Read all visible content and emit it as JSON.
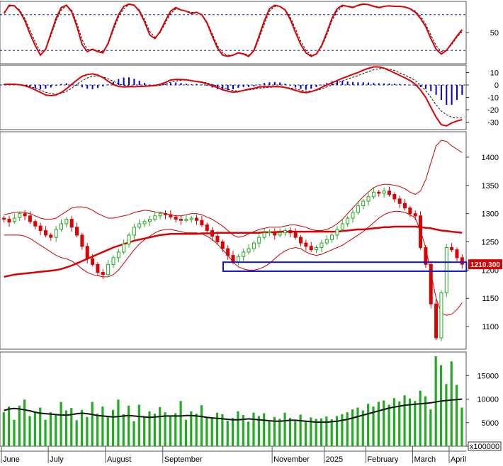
{
  "chart_data": [
    {
      "type": "line",
      "panel": "oscillator",
      "y_ticks": [
        50
      ],
      "ylim": [
        0,
        100
      ],
      "reference_lines": [
        80,
        20
      ],
      "series": [
        {
          "color": "#e00000",
          "values": [
            82,
            96,
            95,
            86,
            70,
            48,
            28,
            12,
            22,
            48,
            74,
            92,
            96,
            85,
            60,
            30,
            18,
            22,
            18,
            16,
            32,
            58,
            80,
            94,
            98,
            96,
            86,
            68,
            46,
            40,
            52,
            70,
            86,
            92,
            88,
            86,
            82,
            84,
            80,
            66,
            44,
            24,
            12,
            10,
            12,
            16,
            14,
            10,
            20,
            44,
            70,
            90,
            96,
            94,
            88,
            72,
            50,
            30,
            16,
            10,
            14,
            28,
            50,
            74,
            90,
            96,
            94,
            92,
            96,
            98,
            97,
            94,
            92,
            94,
            95,
            94,
            94,
            93,
            90,
            84,
            74,
            60,
            40,
            22,
            14,
            20,
            32,
            44,
            55
          ]
        },
        {
          "color": "#111111",
          "values": [
            84,
            94,
            95,
            88,
            74,
            54,
            34,
            18,
            22,
            44,
            70,
            88,
            95,
            88,
            66,
            38,
            22,
            22,
            20,
            18,
            30,
            54,
            76,
            90,
            97,
            96,
            88,
            72,
            52,
            42,
            50,
            66,
            82,
            90,
            88,
            86,
            84,
            84,
            80,
            68,
            48,
            28,
            16,
            12,
            12,
            16,
            15,
            12,
            18,
            40,
            64,
            86,
            94,
            94,
            89,
            76,
            56,
            36,
            20,
            12,
            14,
            26,
            46,
            70,
            86,
            94,
            95,
            93,
            95,
            97,
            97,
            95,
            93,
            94,
            95,
            94,
            94,
            93,
            91,
            86,
            78,
            64,
            46,
            28,
            18,
            20,
            30,
            42,
            52
          ]
        }
      ]
    },
    {
      "type": "bar",
      "panel": "macd",
      "y_ticks": [
        10,
        0,
        -10,
        -20,
        -30
      ],
      "ylim": [
        -36,
        16
      ],
      "histogram_color": "#0000dd",
      "histogram": [
        0.6,
        1,
        1.2,
        0.6,
        -0.2,
        -1.2,
        -2.6,
        -3.4,
        -3,
        -2,
        -0.6,
        0.8,
        1.4,
        1,
        -0.2,
        -1.8,
        -3,
        -3.4,
        -2.4,
        -1.2,
        0.4,
        2.4,
        4.8,
        6,
        6.2,
        5,
        3.4,
        1.6,
        0.2,
        -0.6,
        -0.2,
        0.8,
        1.6,
        2,
        1.6,
        1,
        0.6,
        0.8,
        0.4,
        -0.6,
        -2,
        -3.4,
        -4.4,
        -4.2,
        -3.4,
        -2.4,
        -1.6,
        -1.6,
        -1.2,
        0.4,
        1.6,
        2.2,
        2.4,
        2,
        1,
        -0.4,
        -2,
        -3.2,
        -3.8,
        -3,
        -1.6,
        0.2,
        1.6,
        2.8,
        3.6,
        3.4,
        2.8,
        2.4,
        2.2,
        2.2,
        2,
        1.6,
        1.4,
        1.2,
        1.2,
        1,
        0.8,
        0.6,
        0.2,
        -0.6,
        -1.6,
        -3.2,
        -5,
        -8,
        -12,
        -16,
        -16,
        -12,
        -8
      ],
      "series": [
        {
          "color": "#e00000",
          "values": [
            0.5,
            0.6,
            0.5,
            0.2,
            -0.6,
            -2,
            -4,
            -6,
            -8,
            -8.6,
            -8,
            -6,
            -3,
            0.5,
            4,
            7,
            8.4,
            9,
            8,
            6,
            3,
            0.4,
            -1.2,
            -1.6,
            -1.4,
            -1.4,
            -1.2,
            -1,
            -0.8,
            -0.4,
            0.6,
            2,
            4,
            4.5,
            4.4,
            4.2,
            3.4,
            2.8,
            2.2,
            0.8,
            -0.6,
            -2,
            -3.8,
            -5,
            -5.8,
            -5.4,
            -4.4,
            -3.4,
            -2.6,
            -1.6,
            -1.4,
            -1.4,
            -1.2,
            -1.4,
            -2,
            -3,
            -4.4,
            -5.6,
            -6.2,
            -5.4,
            -4,
            -2,
            0,
            1.8,
            3.6,
            5.4,
            7,
            8.6,
            10,
            12,
            13.4,
            14.6,
            14.6,
            13.6,
            11.8,
            9.8,
            7.8,
            5.8,
            3.6,
            0.6,
            -4,
            -10,
            -18,
            -26,
            -32,
            -33,
            -30.6,
            -29,
            -28
          ]
        },
        {
          "color": "#111111",
          "dashed": true,
          "values": [
            0.5,
            0.6,
            0.6,
            0.4,
            -0.2,
            -1.2,
            -2.6,
            -4.2,
            -5.8,
            -7,
            -7.4,
            -6.8,
            -5,
            -2.6,
            0.6,
            3.4,
            5.6,
            7.2,
            7.4,
            6.6,
            5,
            3,
            1,
            -0.2,
            -0.8,
            -1.1,
            -1.2,
            -1.1,
            -1,
            -0.8,
            -0.2,
            0.8,
            2.2,
            3.2,
            3.8,
            4,
            3.6,
            3.1,
            2.6,
            1.6,
            0.4,
            -0.8,
            -2.2,
            -3.4,
            -4.4,
            -4.8,
            -4.6,
            -4,
            -3.4,
            -2.6,
            -2.2,
            -1.9,
            -1.6,
            -1.6,
            -1.8,
            -2.4,
            -3.2,
            -4.2,
            -5,
            -5,
            -4.4,
            -3.2,
            -1.6,
            0,
            1.6,
            3.2,
            4.8,
            6.2,
            7.6,
            9.2,
            10.8,
            12.2,
            13.2,
            13.4,
            12.8,
            11.6,
            9.8,
            8,
            6,
            3.6,
            0,
            -4.6,
            -10,
            -16,
            -21,
            -24,
            -26,
            -26.4,
            -26.6
          ]
        }
      ]
    },
    {
      "type": "candlestick",
      "panel": "price",
      "y_ticks": [
        1400,
        1350,
        1300,
        1250,
        1200,
        1150,
        1100
      ],
      "ylim": [
        1060,
        1445
      ],
      "up_color": "#22aa22",
      "down_color": "#dd0000",
      "close": [
        1290,
        1285,
        1292,
        1300,
        1296,
        1286,
        1278,
        1270,
        1262,
        1258,
        1272,
        1282,
        1290,
        1276,
        1262,
        1242,
        1220,
        1210,
        1196,
        1192,
        1210,
        1222,
        1232,
        1246,
        1262,
        1276,
        1282,
        1286,
        1290,
        1296,
        1300,
        1298,
        1294,
        1290,
        1288,
        1290,
        1292,
        1288,
        1280,
        1270,
        1260,
        1250,
        1238,
        1226,
        1214,
        1224,
        1232,
        1238,
        1248,
        1258,
        1266,
        1268,
        1262,
        1266,
        1270,
        1266,
        1258,
        1248,
        1242,
        1236,
        1240,
        1248,
        1254,
        1262,
        1272,
        1282,
        1292,
        1302,
        1314,
        1322,
        1330,
        1338,
        1336,
        1340,
        1334,
        1326,
        1318,
        1310,
        1300,
        1296,
        1240,
        1210,
        1140,
        1080,
        1160,
        1240,
        1236,
        1222,
        1210.3
      ],
      "open": [
        1292,
        1290,
        1286,
        1293,
        1300,
        1296,
        1286,
        1278,
        1270,
        1262,
        1258,
        1272,
        1282,
        1290,
        1276,
        1262,
        1242,
        1220,
        1210,
        1196,
        1192,
        1210,
        1222,
        1232,
        1246,
        1262,
        1276,
        1282,
        1286,
        1290,
        1296,
        1300,
        1298,
        1294,
        1290,
        1288,
        1290,
        1292,
        1288,
        1280,
        1270,
        1260,
        1250,
        1238,
        1226,
        1214,
        1224,
        1232,
        1238,
        1248,
        1258,
        1266,
        1268,
        1262,
        1266,
        1270,
        1266,
        1258,
        1248,
        1242,
        1236,
        1240,
        1248,
        1254,
        1262,
        1272,
        1282,
        1292,
        1302,
        1314,
        1322,
        1330,
        1338,
        1336,
        1340,
        1334,
        1326,
        1318,
        1310,
        1300,
        1296,
        1240,
        1210,
        1140,
        1080,
        1160,
        1240,
        1236,
        1222
      ],
      "bollinger_upper": [
        1298,
        1300,
        1302,
        1303,
        1302,
        1300,
        1296,
        1292,
        1290,
        1290,
        1292,
        1298,
        1304,
        1310,
        1312,
        1312,
        1310,
        1306,
        1300,
        1296,
        1292,
        1292,
        1294,
        1296,
        1298,
        1302,
        1304,
        1306,
        1305,
        1303,
        1302,
        1300,
        1298,
        1296,
        1296,
        1298,
        1300,
        1300,
        1298,
        1294,
        1290,
        1284,
        1278,
        1270,
        1262,
        1258,
        1260,
        1264,
        1268,
        1272,
        1274,
        1276,
        1276,
        1276,
        1278,
        1280,
        1280,
        1278,
        1276,
        1272,
        1270,
        1270,
        1272,
        1276,
        1282,
        1290,
        1300,
        1310,
        1320,
        1330,
        1338,
        1346,
        1350,
        1352,
        1352,
        1350,
        1348,
        1344,
        1338,
        1334,
        1340,
        1360,
        1390,
        1420,
        1430,
        1428,
        1420,
        1414,
        1408
      ],
      "bollinger_lower": [
        1262,
        1262,
        1262,
        1262,
        1260,
        1256,
        1250,
        1244,
        1238,
        1232,
        1226,
        1222,
        1220,
        1216,
        1210,
        1202,
        1196,
        1192,
        1190,
        1188,
        1188,
        1192,
        1200,
        1212,
        1224,
        1236,
        1246,
        1254,
        1260,
        1266,
        1270,
        1272,
        1272,
        1270,
        1268,
        1266,
        1266,
        1266,
        1264,
        1260,
        1254,
        1246,
        1236,
        1226,
        1214,
        1206,
        1202,
        1200,
        1200,
        1202,
        1206,
        1212,
        1220,
        1228,
        1234,
        1238,
        1240,
        1238,
        1232,
        1228,
        1226,
        1228,
        1232,
        1236,
        1240,
        1244,
        1250,
        1256,
        1262,
        1268,
        1276,
        1284,
        1292,
        1298,
        1302,
        1304,
        1304,
        1302,
        1298,
        1292,
        1270,
        1240,
        1196,
        1150,
        1124,
        1120,
        1122,
        1130,
        1142
      ],
      "sma_200": [
        1188,
        1190,
        1192,
        1193,
        1194,
        1195,
        1196,
        1197,
        1198,
        1199,
        1200,
        1202,
        1205,
        1208,
        1212,
        1216,
        1220,
        1224,
        1228,
        1232,
        1236,
        1240,
        1243,
        1246,
        1249,
        1252,
        1254,
        1256,
        1258,
        1260,
        1262,
        1263,
        1264,
        1264,
        1264,
        1264,
        1264,
        1264,
        1265,
        1265,
        1265,
        1266,
        1266,
        1266,
        1266,
        1266,
        1266,
        1266,
        1266,
        1266,
        1267,
        1267,
        1267,
        1268,
        1268,
        1268,
        1268,
        1268,
        1268,
        1268,
        1268,
        1268,
        1268,
        1268,
        1268,
        1269,
        1270,
        1271,
        1272,
        1272,
        1273,
        1274,
        1275,
        1276,
        1276,
        1277,
        1277,
        1277,
        1277,
        1277,
        1276,
        1275,
        1274,
        1272,
        1270,
        1269,
        1268,
        1267,
        1266
      ],
      "support_box": {
        "from": 1198,
        "to": 1214
      },
      "last_price_label": "1210.300"
    },
    {
      "type": "bar",
      "panel": "volume",
      "y_ticks": [
        15000,
        10000,
        5000,
        0
      ],
      "ylim": [
        0,
        20000
      ],
      "unit_label": "x100000",
      "bar_color": "#22aa22",
      "values": [
        7200,
        8400,
        5600,
        8600,
        9900,
        6400,
        7400,
        8200,
        5600,
        7200,
        6800,
        9400,
        7600,
        8100,
        5500,
        7700,
        6200,
        9400,
        6900,
        8400,
        6400,
        7700,
        9900,
        6800,
        8600,
        5300,
        8800,
        6100,
        7400,
        6900,
        8300,
        7200,
        6400,
        7000,
        9600,
        5600,
        7400,
        6900,
        8700,
        6200,
        5900,
        7100,
        6800,
        5400,
        6000,
        7400,
        6600,
        5200,
        7100,
        6400,
        7000,
        5400,
        6200,
        5800,
        7100,
        6000,
        5300,
        6700,
        5400,
        6100,
        5800,
        5900,
        6300,
        5700,
        6400,
        6800,
        7200,
        7800,
        8200,
        7600,
        9000,
        8400,
        9400,
        9700,
        8800,
        10200,
        9500,
        10800,
        10100,
        9600,
        11800,
        10600,
        7800,
        19100,
        17200,
        13200,
        18000,
        13000,
        8200
      ],
      "ma_values": [
        7600,
        7900,
        8000,
        7900,
        7700,
        7500,
        7200,
        7000,
        6900,
        6800,
        6700,
        6600,
        6600,
        6700,
        6900,
        7000,
        6900,
        6700,
        6500,
        6400,
        6300,
        6200,
        6300,
        6400,
        6500,
        6400,
        6300,
        6200,
        6100,
        6200,
        6300,
        6400,
        6400,
        6400,
        6400,
        6500,
        6500,
        6400,
        6300,
        6100,
        6000,
        5900,
        5800,
        5700,
        5600,
        5600,
        5700,
        5800,
        5700,
        5600,
        5500,
        5400,
        5300,
        5300,
        5400,
        5500,
        5500,
        5400,
        5300,
        5200,
        5100,
        5100,
        5100,
        5200,
        5300,
        5500,
        5700,
        6000,
        6300,
        6600,
        6900,
        7200,
        7500,
        7800,
        8100,
        8300,
        8500,
        8700,
        8800,
        8900,
        9000,
        9100,
        9200,
        9400,
        9600,
        9700,
        9800,
        9900,
        10000
      ]
    }
  ],
  "x_axis": {
    "months": [
      "June",
      "July",
      "August",
      "September",
      "November",
      "2025",
      "February",
      "March",
      "April"
    ]
  }
}
